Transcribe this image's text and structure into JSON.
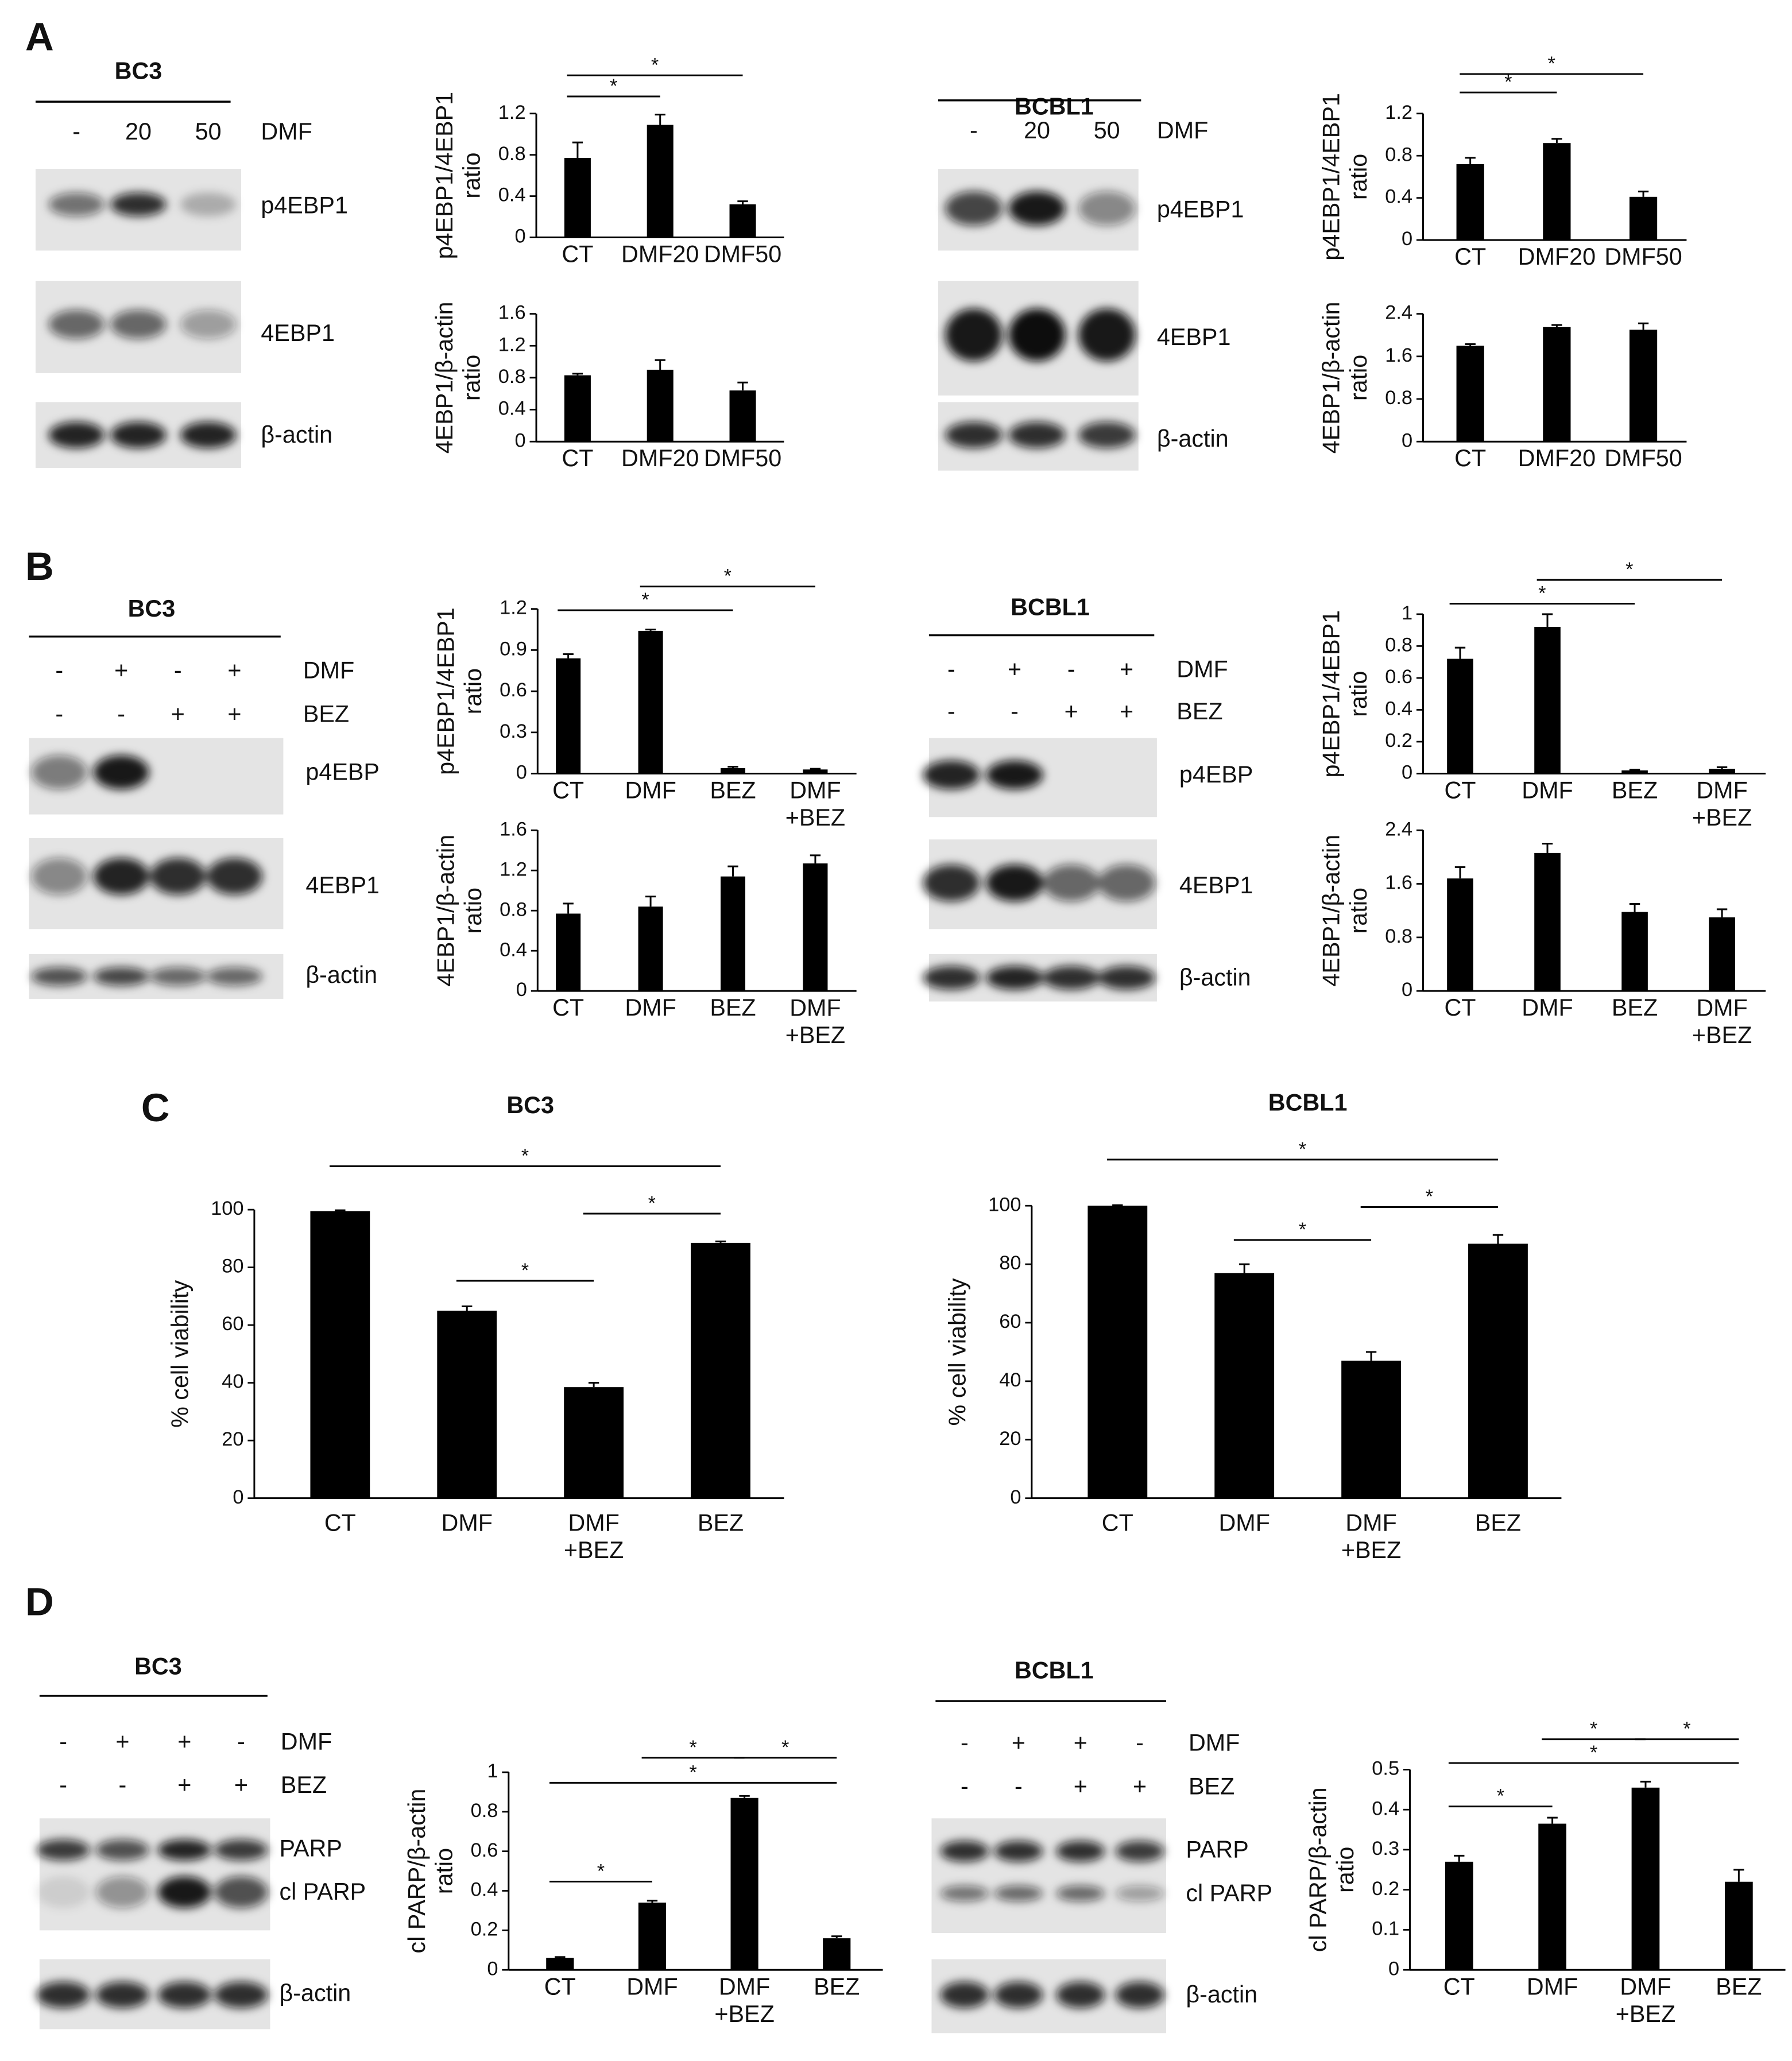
{
  "panel_labels": [
    "A",
    "B",
    "C",
    "D"
  ],
  "blots": [
    {
      "title": "BC3",
      "treatments": [
        {
          "name": "DMF",
          "lanes": [
            "-",
            "20",
            "50"
          ]
        }
      ],
      "bands": [
        "p4EBP1",
        "4EBP1",
        "β-actin"
      ]
    },
    {
      "title": "BCBL1",
      "treatments": [
        {
          "name": "DMF",
          "lanes": [
            "-",
            "20",
            "50"
          ]
        }
      ],
      "bands": [
        "p4EBP1",
        "4EBP1",
        "β-actin"
      ]
    },
    {
      "title": "BC3",
      "treatments": [
        {
          "name": "DMF",
          "lanes": [
            "-",
            "+",
            "-",
            "+"
          ]
        },
        {
          "name": "BEZ",
          "lanes": [
            "-",
            "-",
            "+",
            "+"
          ]
        }
      ],
      "bands": [
        "p4EBP",
        "4EBP1",
        "β-actin"
      ]
    },
    {
      "title": "BCBL1",
      "treatments": [
        {
          "name": "DMF",
          "lanes": [
            "-",
            "+",
            "-",
            "+"
          ]
        },
        {
          "name": "BEZ",
          "lanes": [
            "-",
            "-",
            "+",
            "+"
          ]
        }
      ],
      "bands": [
        "p4EBP",
        "4EBP1",
        "β-actin"
      ]
    },
    {
      "title": "BC3",
      "treatments": [
        {
          "name": "DMF",
          "lanes": [
            "-",
            "+",
            "+",
            "-"
          ]
        },
        {
          "name": "BEZ",
          "lanes": [
            "-",
            "-",
            "+",
            "+"
          ]
        }
      ],
      "bands": [
        "PARP",
        "cl PARP",
        "β-actin"
      ]
    },
    {
      "title": "BCBL1",
      "treatments": [
        {
          "name": "DMF",
          "lanes": [
            "-",
            "+",
            "+",
            "-"
          ]
        },
        {
          "name": "BEZ",
          "lanes": [
            "-",
            "-",
            "+",
            "+"
          ]
        }
      ],
      "bands": [
        "PARP",
        "cl PARP",
        "β-actin"
      ]
    }
  ],
  "chart_data": [
    {
      "type": "bar",
      "ylabel": "p4EBP1/4EBP1\nratio",
      "categories": [
        "CT",
        "DMF20",
        "DMF50"
      ],
      "values": [
        0.77,
        1.09,
        0.32
      ],
      "errors": [
        0.15,
        0.1,
        0.03
      ],
      "color": "#000000",
      "ylim": [
        0,
        1.2
      ],
      "yticks": [
        0,
        0.4,
        0.8,
        1.2
      ],
      "significance": [
        {
          "from": "CT",
          "to": "DMF20",
          "label": "*"
        },
        {
          "from": "CT",
          "to": "DMF50",
          "label": "*"
        }
      ]
    },
    {
      "type": "bar",
      "ylabel": "4EBP1/β-actin\nratio",
      "categories": [
        "CT",
        "DMF20",
        "DMF50"
      ],
      "values": [
        0.83,
        0.9,
        0.64
      ],
      "errors": [
        0.02,
        0.12,
        0.1
      ],
      "color": "#000000",
      "ylim": [
        0,
        1.6
      ],
      "yticks": [
        0,
        0.4,
        0.8,
        1.2,
        1.6
      ],
      "significance": []
    },
    {
      "type": "bar",
      "ylabel": "p4EBP1/4EBP1\nratio",
      "categories": [
        "CT",
        "DMF20",
        "DMF50"
      ],
      "values": [
        0.72,
        0.92,
        0.41
      ],
      "errors": [
        0.06,
        0.04,
        0.05
      ],
      "color": "#000000",
      "ylim": [
        0,
        1.2
      ],
      "yticks": [
        0,
        0.4,
        0.8,
        1.2
      ],
      "significance": [
        {
          "from": "CT",
          "to": "DMF20",
          "label": "*"
        },
        {
          "from": "CT",
          "to": "DMF50",
          "label": "*"
        }
      ]
    },
    {
      "type": "bar",
      "ylabel": "4EBP1/β-actin\nratio",
      "categories": [
        "CT",
        "DMF20",
        "DMF50"
      ],
      "values": [
        1.8,
        2.15,
        2.1
      ],
      "errors": [
        0.03,
        0.04,
        0.12
      ],
      "color": "#000000",
      "ylim": [
        0,
        2.4
      ],
      "yticks": [
        0,
        0.8,
        1.6,
        2.4
      ],
      "significance": []
    },
    {
      "type": "bar",
      "ylabel": "p4EBP1/4EBP1\nratio",
      "categories": [
        "CT",
        "DMF",
        "BEZ",
        "DMF\n+BEZ"
      ],
      "values": [
        0.84,
        1.04,
        0.04,
        0.03
      ],
      "errors": [
        0.03,
        0.01,
        0.01,
        0.005
      ],
      "color": "#000000",
      "ylim": [
        0,
        1.2
      ],
      "yticks": [
        0,
        0.3,
        0.6,
        0.9,
        1.2
      ],
      "significance": [
        {
          "from": "CT",
          "to": "BEZ",
          "label": "*"
        },
        {
          "from": "DMF",
          "to": "DMF\n+BEZ",
          "label": "*"
        }
      ]
    },
    {
      "type": "bar",
      "ylabel": "4EBP1/β-actin\nratio",
      "categories": [
        "CT",
        "DMF",
        "BEZ",
        "DMF\n+BEZ"
      ],
      "values": [
        0.77,
        0.84,
        1.14,
        1.27
      ],
      "errors": [
        0.1,
        0.1,
        0.1,
        0.08
      ],
      "color": "#000000",
      "ylim": [
        0,
        1.6
      ],
      "yticks": [
        0,
        0.4,
        0.8,
        1.2,
        1.6
      ],
      "significance": []
    },
    {
      "type": "bar",
      "ylabel": "p4EBP1/4EBP1\nratio",
      "categories": [
        "CT",
        "DMF",
        "BEZ",
        "DMF\n+BEZ"
      ],
      "values": [
        0.72,
        0.92,
        0.02,
        0.03
      ],
      "errors": [
        0.07,
        0.08,
        0.005,
        0.01
      ],
      "color": "#000000",
      "ylim": [
        0,
        1
      ],
      "yticks": [
        0,
        0.2,
        0.4,
        0.6,
        0.8,
        1
      ],
      "significance": [
        {
          "from": "CT",
          "to": "BEZ",
          "label": "*"
        },
        {
          "from": "DMF",
          "to": "DMF\n+BEZ",
          "label": "*"
        }
      ]
    },
    {
      "type": "bar",
      "ylabel": "4EBP1/β-actin\nratio",
      "categories": [
        "CT",
        "DMF",
        "BEZ",
        "DMF\n+BEZ"
      ],
      "values": [
        1.68,
        2.06,
        1.18,
        1.1
      ],
      "errors": [
        0.17,
        0.14,
        0.12,
        0.12
      ],
      "color": "#000000",
      "ylim": [
        0,
        2.4
      ],
      "yticks": [
        0,
        0.8,
        1.6,
        2.4
      ],
      "significance": []
    },
    {
      "type": "bar",
      "title": "BC3",
      "ylabel": "% cell viability",
      "categories": [
        "CT",
        "DMF",
        "DMF\n+BEZ",
        "BEZ"
      ],
      "values": [
        99.5,
        65,
        38.5,
        88.5
      ],
      "errors": [
        0.3,
        1.5,
        1.5,
        0.5
      ],
      "color": "#000000",
      "ylim": [
        0,
        100
      ],
      "yticks": [
        0,
        20,
        40,
        60,
        80,
        100
      ],
      "significance": [
        {
          "from": "DMF",
          "to": "DMF\n+BEZ",
          "label": "*"
        },
        {
          "from": "DMF\n+BEZ",
          "to": "BEZ",
          "label": "*"
        },
        {
          "from": "CT",
          "to": "BEZ",
          "label": "*"
        }
      ]
    },
    {
      "type": "bar",
      "title": "BCBL1",
      "ylabel": "% cell viability",
      "categories": [
        "CT",
        "DMF",
        "DMF\n+BEZ",
        "BEZ"
      ],
      "values": [
        100,
        77,
        47,
        87
      ],
      "errors": [
        0.2,
        3,
        3,
        3
      ],
      "color": "#000000",
      "ylim": [
        0,
        100
      ],
      "yticks": [
        0,
        20,
        40,
        60,
        80,
        100
      ],
      "significance": [
        {
          "from": "DMF",
          "to": "DMF\n+BEZ",
          "label": "*"
        },
        {
          "from": "DMF\n+BEZ",
          "to": "BEZ",
          "label": "*"
        },
        {
          "from": "CT",
          "to": "BEZ",
          "label": "*"
        }
      ]
    },
    {
      "type": "bar",
      "ylabel": "cl PARP/β-actin\nratio",
      "categories": [
        "CT",
        "DMF",
        "DMF\n+BEZ",
        "BEZ"
      ],
      "values": [
        0.06,
        0.34,
        0.87,
        0.16
      ],
      "errors": [
        0.005,
        0.01,
        0.01,
        0.01
      ],
      "color": "#000000",
      "ylim": [
        0,
        1
      ],
      "yticks": [
        0,
        0.2,
        0.4,
        0.6,
        0.8,
        1
      ],
      "significance": [
        {
          "from": "CT",
          "to": "DMF",
          "label": "*"
        },
        {
          "from": "DMF",
          "to": "DMF\n+BEZ",
          "label": "*"
        },
        {
          "from": "DMF\n+BEZ",
          "to": "BEZ",
          "label": "*"
        },
        {
          "from": "CT",
          "to": "BEZ",
          "label": "*"
        }
      ]
    },
    {
      "type": "bar",
      "ylabel": "cl PARP/β-actin\nratio",
      "categories": [
        "CT",
        "DMF",
        "DMF\n+BEZ",
        "BEZ"
      ],
      "values": [
        0.27,
        0.365,
        0.455,
        0.22
      ],
      "errors": [
        0.015,
        0.015,
        0.015,
        0.03
      ],
      "color": "#000000",
      "ylim": [
        0,
        0.5
      ],
      "yticks": [
        0,
        0.1,
        0.2,
        0.3,
        0.4,
        0.5
      ],
      "significance": [
        {
          "from": "CT",
          "to": "DMF",
          "label": "*"
        },
        {
          "from": "DMF",
          "to": "DMF\n+BEZ",
          "label": "*"
        },
        {
          "from": "DMF\n+BEZ",
          "to": "BEZ",
          "label": "*"
        },
        {
          "from": "CT",
          "to": "BEZ",
          "label": "*"
        }
      ]
    }
  ]
}
